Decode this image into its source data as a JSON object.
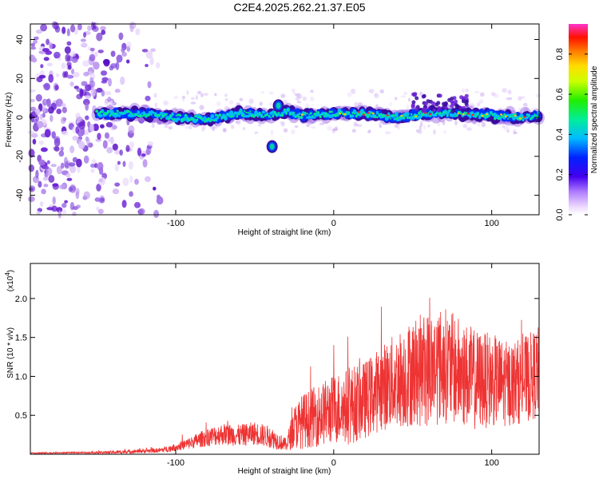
{
  "title": "C2E4.2025.262.21.37.E05",
  "colors": {
    "snr_line": "#ee3333",
    "axis": "#000000",
    "spectro_outline": "#3b0c9f"
  },
  "chart_data": [
    {
      "type": "heatmap",
      "name": "spectrogram",
      "xlabel": "Height of straight line (km)",
      "ylabel": "Frequency (Hz)",
      "xlim": [
        -192,
        130
      ],
      "ylim": [
        -50,
        48
      ],
      "xticks": [
        -100,
        0,
        100
      ],
      "yticks": [
        -40,
        -20,
        0,
        20,
        40
      ],
      "xtick_labels": [
        "-100",
        "0",
        "100"
      ],
      "ytick_labels": [
        "-40",
        "-20",
        "0",
        "20",
        "40"
      ],
      "colorbar": {
        "label": "Normalized spectral amplitude",
        "range": [
          0,
          0.95
        ],
        "ticks": [
          0.0,
          0.2,
          0.4,
          0.6,
          0.8
        ],
        "tick_labels": [
          "0.0",
          "0.2",
          "0.4",
          "0.6",
          "0.8"
        ]
      },
      "ridge": {
        "description_points": [
          [
            -150,
            2
          ],
          [
            -120,
            2
          ],
          [
            -100,
            0
          ],
          [
            -80,
            -1
          ],
          [
            -60,
            2
          ],
          [
            -40,
            1
          ],
          [
            -30,
            3
          ],
          [
            -20,
            1
          ],
          [
            0,
            2
          ],
          [
            20,
            2
          ],
          [
            40,
            0
          ],
          [
            60,
            2
          ],
          [
            80,
            2
          ],
          [
            100,
            1
          ],
          [
            120,
            0
          ],
          [
            130,
            1
          ]
        ],
        "excursions": [
          [
            -39,
            -15
          ],
          [
            -35,
            6
          ]
        ]
      }
    },
    {
      "type": "line",
      "name": "snr",
      "xlabel": "Height of straight line (km)",
      "ylabel": "SNR (10 * v/v)",
      "multiplier_label": "(x10",
      "multiplier_exp": "4",
      "xlim": [
        -192,
        130
      ],
      "ylim": [
        0,
        2.45
      ],
      "xticks": [
        -100,
        0,
        100
      ],
      "yticks": [
        0.5,
        1.0,
        1.5,
        2.0
      ],
      "xtick_labels": [
        "-100",
        "0",
        "100"
      ],
      "ytick_labels": [
        "0.5",
        "1.0",
        "1.5",
        "2.0"
      ],
      "envelope": {
        "x": [
          -192,
          -160,
          -140,
          -110,
          -100,
          -90,
          -80,
          -70,
          -60,
          -50,
          -40,
          -30,
          -25,
          -20,
          -10,
          0,
          10,
          20,
          30,
          40,
          50,
          60,
          70,
          80,
          90,
          100,
          110,
          120,
          130
        ],
        "level": [
          0.015,
          0.02,
          0.025,
          0.05,
          0.09,
          0.15,
          0.22,
          0.26,
          0.24,
          0.27,
          0.22,
          0.12,
          0.35,
          0.42,
          0.5,
          0.58,
          0.62,
          0.7,
          0.85,
          0.95,
          1.05,
          1.1,
          1.15,
          1.05,
          0.95,
          0.95,
          0.9,
          0.95,
          1.05
        ],
        "spread": [
          0.008,
          0.01,
          0.02,
          0.03,
          0.05,
          0.08,
          0.12,
          0.14,
          0.14,
          0.15,
          0.14,
          0.08,
          0.28,
          0.35,
          0.4,
          0.45,
          0.5,
          0.5,
          0.55,
          0.62,
          0.7,
          0.75,
          0.75,
          0.7,
          0.65,
          0.6,
          0.55,
          0.55,
          0.6
        ]
      }
    }
  ]
}
